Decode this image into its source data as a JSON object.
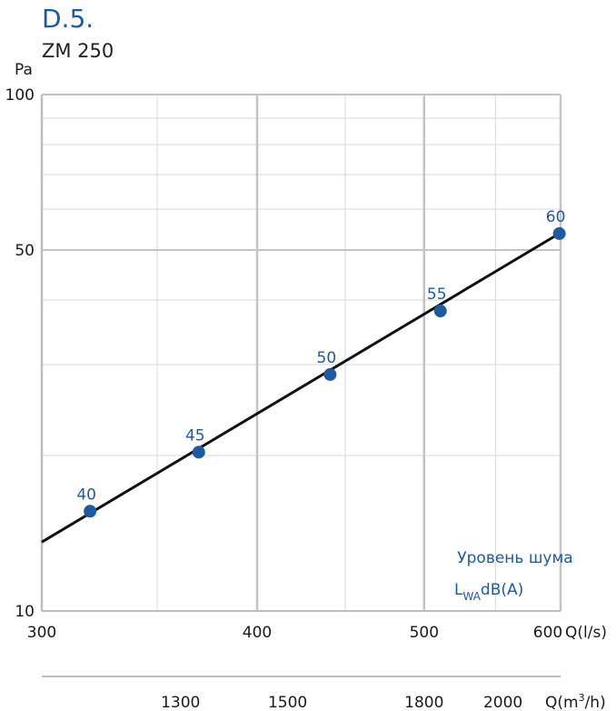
{
  "heading": "D.5.",
  "subtitle": "ZM 250",
  "colors": {
    "accent": "#1e5aa0",
    "line": "#111111",
    "grid_minor": "#d9d9d9",
    "grid_major": "#c4c4c4"
  },
  "chart_data": {
    "type": "line",
    "scale": "log-log",
    "grid": true,
    "ylabel": "Pa",
    "xlabel": "Q(l/s)",
    "x2label_prefix": "Q(m",
    "x2label_sup": "3",
    "x2label_suffix": "/h)",
    "xlim": [
      300,
      600
    ],
    "ylim": [
      10,
      100
    ],
    "x_ticks": [
      300,
      400,
      500,
      600
    ],
    "y_ticks": [
      10,
      50,
      100
    ],
    "x2_ticks": [
      1300,
      1500,
      1800,
      2000
    ],
    "x_minor_grid": [
      350,
      450,
      550
    ],
    "y_minor_grid": [
      20,
      30,
      40,
      60,
      70,
      80,
      90
    ],
    "line": {
      "x": [
        300,
        600
      ],
      "y": [
        13.6,
        54
      ]
    },
    "points": [
      {
        "x": 320,
        "y": 15.6,
        "label": "40"
      },
      {
        "x": 370,
        "y": 20.3,
        "label": "45"
      },
      {
        "x": 441,
        "y": 28.7,
        "label": "50"
      },
      {
        "x": 511,
        "y": 38.1,
        "label": "55"
      },
      {
        "x": 599,
        "y": 53.8,
        "label": "60"
      }
    ],
    "annotation_line1": "Уровень шума",
    "annotation_main": "L",
    "annotation_sub": "WA",
    "annotation_tail": "dB(A)"
  }
}
